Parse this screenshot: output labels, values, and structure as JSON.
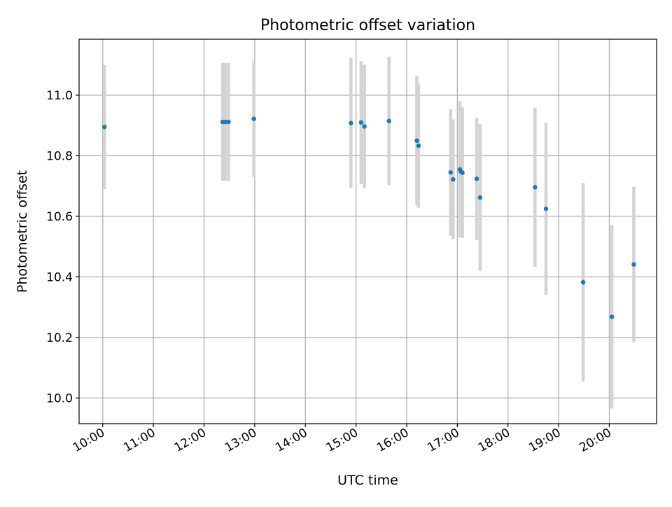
{
  "chart_data": {
    "type": "scatter",
    "title": "Photometric offset variation",
    "xlabel": "UTC time",
    "ylabel": "Photometric offset",
    "xlim": [
      "09:32",
      "20:56"
    ],
    "ylim": [
      9.915,
      11.185
    ],
    "x_ticks": [
      "10:00",
      "11:00",
      "12:00",
      "13:00",
      "14:00",
      "15:00",
      "16:00",
      "17:00",
      "18:00",
      "19:00",
      "20:00"
    ],
    "y_ticks": [
      "10.0",
      "10.2",
      "10.4",
      "10.6",
      "10.8",
      "11.0"
    ],
    "grid": true,
    "marker_color": "#1f77b4",
    "errorbar_color": "#d3d3d3",
    "points": [
      {
        "x": "10:02",
        "y": 10.895,
        "err": 0.205
      },
      {
        "x": "12:22",
        "y": 10.912,
        "err": 0.195
      },
      {
        "x": "12:25",
        "y": 10.912,
        "err": 0.195
      },
      {
        "x": "12:29",
        "y": 10.912,
        "err": 0.195
      },
      {
        "x": "12:59",
        "y": 10.922,
        "err": 0.192
      },
      {
        "x": "14:54",
        "y": 10.908,
        "err": 0.215
      },
      {
        "x": "15:06",
        "y": 10.91,
        "err": 0.203
      },
      {
        "x": "15:10",
        "y": 10.897,
        "err": 0.204
      },
      {
        "x": "15:39",
        "y": 10.915,
        "err": 0.212
      },
      {
        "x": "16:12",
        "y": 10.85,
        "err": 0.213
      },
      {
        "x": "16:14",
        "y": 10.833,
        "err": 0.205
      },
      {
        "x": "16:52",
        "y": 10.745,
        "err": 0.209
      },
      {
        "x": "16:55",
        "y": 10.722,
        "err": 0.198
      },
      {
        "x": "17:03",
        "y": 10.755,
        "err": 0.225
      },
      {
        "x": "17:04",
        "y": 10.748,
        "err": 0.215
      },
      {
        "x": "17:06",
        "y": 10.744,
        "err": 0.215
      },
      {
        "x": "17:23",
        "y": 10.724,
        "err": 0.202
      },
      {
        "x": "17:27",
        "y": 10.662,
        "err": 0.242
      },
      {
        "x": "18:32",
        "y": 10.696,
        "err": 0.263
      },
      {
        "x": "18:45",
        "y": 10.625,
        "err": 0.284
      },
      {
        "x": "19:29",
        "y": 10.382,
        "err": 0.328
      },
      {
        "x": "20:03",
        "y": 10.268,
        "err": 0.303
      },
      {
        "x": "20:29",
        "y": 10.441,
        "err": 0.257
      }
    ]
  }
}
